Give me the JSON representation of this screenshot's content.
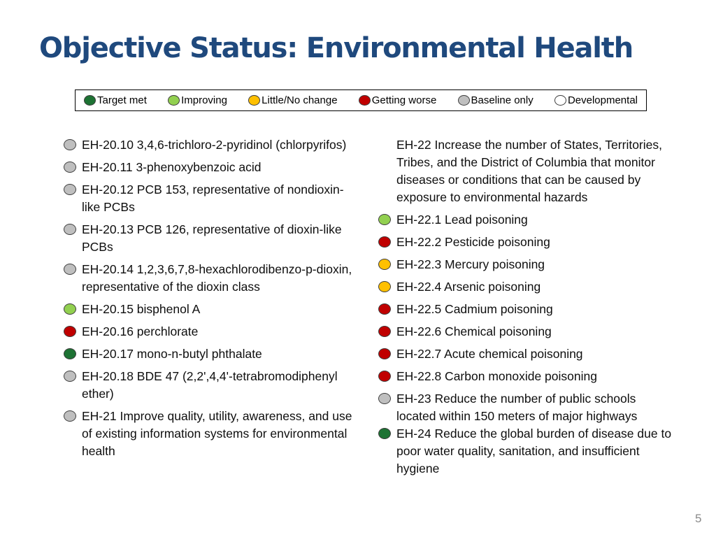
{
  "slide": {
    "title": "Objective Status: Environmental Health",
    "page_number": "5"
  },
  "legend": {
    "items": [
      {
        "label": "Target met",
        "status": "target-met",
        "color": "#1d7233"
      },
      {
        "label": "Improving",
        "status": "improving",
        "color": "#92d050"
      },
      {
        "label": "Little/No change",
        "status": "little-no-change",
        "color": "#ffc000"
      },
      {
        "label": "Getting worse",
        "status": "getting-worse",
        "color": "#c00000"
      },
      {
        "label": "Baseline only",
        "status": "baseline-only",
        "color": "#bfbfbf"
      },
      {
        "label": "Developmental",
        "status": "developmental",
        "color": "#ffffff"
      }
    ]
  },
  "columns": {
    "left": [
      {
        "status": "baseline-only",
        "color": "#bfbfbf",
        "text": "EH-20.10 3,4,6-trichloro-2-pyridinol (chlorpyrifos)"
      },
      {
        "status": "baseline-only",
        "color": "#bfbfbf",
        "text": "EH-20.11 3-phenoxybenzoic acid"
      },
      {
        "status": "baseline-only",
        "color": "#bfbfbf",
        "text": "EH-20.12 PCB 153, representative of nondioxin-like PCBs"
      },
      {
        "status": "baseline-only",
        "color": "#bfbfbf",
        "text": "EH-20.13 PCB 126, representative of dioxin-like PCBs"
      },
      {
        "status": "baseline-only",
        "color": "#bfbfbf",
        "text": "EH-20.14 1,2,3,6,7,8-hexachlorodibenzo-p-dioxin, representative of the dioxin class"
      },
      {
        "status": "improving",
        "color": "#92d050",
        "text": "EH-20.15 bisphenol A"
      },
      {
        "status": "getting-worse",
        "color": "#c00000",
        "text": "EH-20.16 perchlorate"
      },
      {
        "status": "target-met",
        "color": "#1d7233",
        "text": "EH-20.17 mono-n-butyl phthalate"
      },
      {
        "status": "baseline-only",
        "color": "#bfbfbf",
        "text": "EH-20.18 BDE 47 (2,2',4,4'-tetrabromodiphenyl ether)"
      },
      {
        "status": "baseline-only",
        "color": "#bfbfbf",
        "text": "EH-21 Improve quality, utility, awareness, and use of existing information systems for environmental health"
      }
    ],
    "right": [
      {
        "status": "none",
        "text": "EH-22 Increase the number of States, Territories, Tribes, and the District of Columbia that monitor diseases or conditions that can be caused by exposure to environmental hazards"
      },
      {
        "status": "improving",
        "color": "#92d050",
        "text": "EH-22.1 Lead poisoning"
      },
      {
        "status": "getting-worse",
        "color": "#c00000",
        "text": "EH-22.2 Pesticide poisoning"
      },
      {
        "status": "little-no-change",
        "color": "#ffc000",
        "text": "EH-22.3 Mercury poisoning"
      },
      {
        "status": "little-no-change",
        "color": "#ffc000",
        "text": "EH-22.4 Arsenic poisoning"
      },
      {
        "status": "getting-worse",
        "color": "#c00000",
        "text": "EH-22.5 Cadmium poisoning"
      },
      {
        "status": "getting-worse",
        "color": "#c00000",
        "text": "EH-22.6 Chemical poisoning"
      },
      {
        "status": "getting-worse",
        "color": "#c00000",
        "text": "EH-22.7 Acute chemical poisoning"
      },
      {
        "status": "getting-worse",
        "color": "#c00000",
        "text": "EH-22.8 Carbon monoxide poisoning"
      },
      {
        "status": "baseline-only",
        "color": "#bfbfbf",
        "text": "EH-23 Reduce the number of public schools located within 150 meters of major highways"
      },
      {
        "status": "target-met",
        "color": "#1d7233",
        "text": "EH-24 Reduce the global burden of disease due to poor water quality, sanitation, and insufficient hygiene"
      }
    ]
  }
}
